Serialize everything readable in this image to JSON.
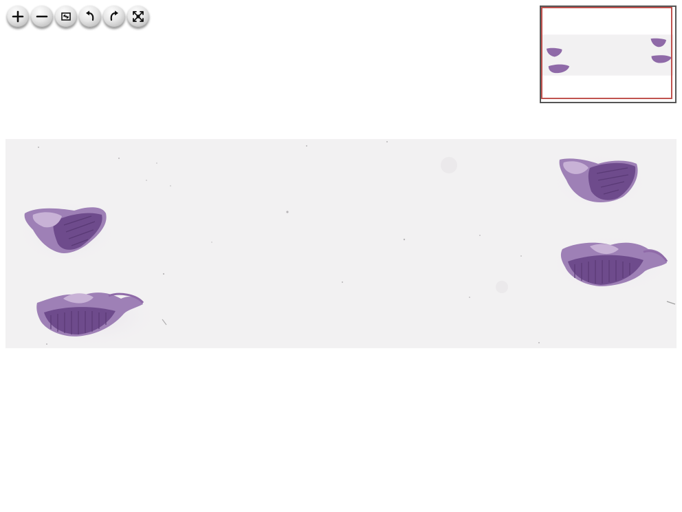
{
  "toolbar": {
    "buttons": [
      {
        "id": "zoom-in",
        "icon": "plus-icon"
      },
      {
        "id": "zoom-out",
        "icon": "minus-icon"
      },
      {
        "id": "home",
        "icon": "home-icon"
      },
      {
        "id": "rotate-left",
        "icon": "rotate-left-icon"
      },
      {
        "id": "rotate-right",
        "icon": "rotate-right-icon"
      },
      {
        "id": "fullscreen",
        "icon": "fullscreen-icon"
      }
    ]
  },
  "colors": {
    "slide_background": "#f2f1f2",
    "tissue_main": "#8f6aa8",
    "tissue_dark": "#6e4b8c",
    "tissue_light": "#c8b2d6",
    "navigator_border": "#555555",
    "navigator_region": "#c0524e"
  }
}
